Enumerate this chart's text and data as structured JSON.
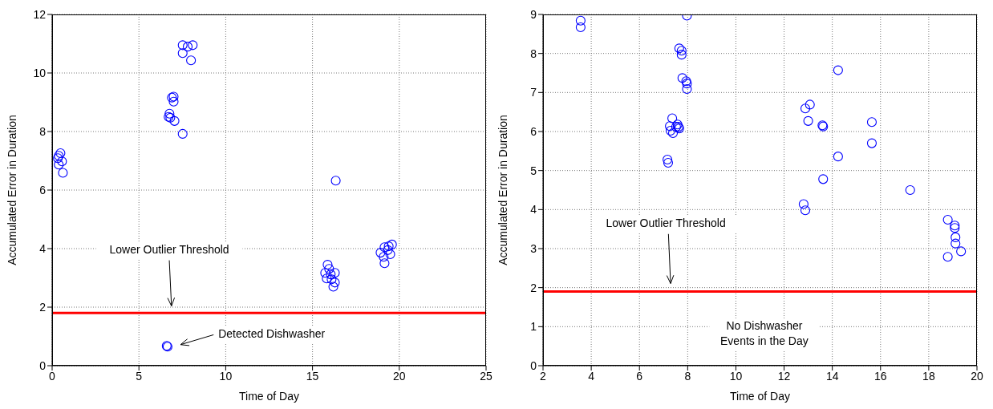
{
  "chart_data": [
    {
      "type": "scatter",
      "xlabel": "Time of Day",
      "ylabel": "Accumulated Error in Duration",
      "marker": "circle",
      "grid": true,
      "xlim": [
        0,
        25
      ],
      "xticks": [
        0,
        5,
        10,
        15,
        20,
        25
      ],
      "ylim": [
        0,
        12
      ],
      "yticks": [
        0,
        2,
        4,
        6,
        8,
        10,
        12
      ],
      "series": [
        {
          "color": "#0000ff",
          "x": [
            0.38,
            0.48,
            0.33,
            0.57,
            0.38,
            0.62,
            7.0,
            6.9,
            7.0,
            6.76,
            6.71,
            6.81,
            7.05,
            7.52,
            7.52,
            8.1,
            7.81,
            7.52,
            8.0,
            16.34,
            15.87,
            15.96,
            15.73,
            16.05,
            16.29,
            15.82,
            16.1,
            16.29,
            16.2,
            18.92,
            19.15,
            19.39,
            19.58,
            19.34,
            19.48,
            19.1,
            19.15,
            6.6,
            6.65
          ],
          "values": [
            7.17,
            7.26,
            7.09,
            6.98,
            6.87,
            6.59,
            9.19,
            9.16,
            9.02,
            8.61,
            8.5,
            8.47,
            8.36,
            7.92,
            10.95,
            10.95,
            10.9,
            10.68,
            10.43,
            6.32,
            3.45,
            3.31,
            3.17,
            3.12,
            3.17,
            2.98,
            2.95,
            2.84,
            2.7,
            3.86,
            4.05,
            4.08,
            4.14,
            3.95,
            3.81,
            3.72,
            3.5,
            0.68,
            0.65
          ]
        }
      ],
      "ref_lines": [
        {
          "axis": "y",
          "value": 1.8,
          "color": "#ff0000"
        }
      ],
      "annotations": [
        "Lower Outlier Threshold",
        "Detected Dishwasher"
      ]
    },
    {
      "type": "scatter",
      "xlabel": "Time of Day",
      "ylabel": "Accumulated Error in Duration",
      "marker": "circle",
      "grid": true,
      "xlim": [
        2,
        20
      ],
      "xticks": [
        2,
        4,
        6,
        8,
        10,
        12,
        14,
        16,
        18,
        20
      ],
      "ylim": [
        0,
        9
      ],
      "yticks": [
        0,
        1,
        2,
        3,
        4,
        5,
        6,
        7,
        8,
        9
      ],
      "series": [
        {
          "color": "#0000ff",
          "x": [
            3.56,
            3.56,
            7.97,
            7.65,
            7.75,
            7.75,
            7.78,
            7.94,
            7.97,
            7.97,
            7.36,
            7.26,
            7.29,
            7.39,
            7.58,
            7.62,
            7.52,
            7.65,
            7.16,
            7.19,
            14.24,
            13.07,
            12.88,
            13.0,
            13.59,
            13.62,
            15.64,
            15.64,
            14.24,
            13.62,
            12.81,
            12.88,
            17.23,
            18.79,
            19.08,
            19.08,
            19.11,
            19.11,
            19.34,
            18.79
          ],
          "values": [
            8.84,
            8.67,
            8.97,
            8.13,
            8.07,
            7.97,
            7.37,
            7.29,
            7.23,
            7.09,
            6.34,
            6.14,
            6.02,
            5.96,
            6.18,
            6.12,
            6.12,
            6.08,
            5.28,
            5.2,
            7.57,
            6.69,
            6.59,
            6.27,
            6.16,
            6.13,
            6.24,
            5.7,
            5.36,
            4.78,
            4.14,
            3.98,
            4.5,
            3.74,
            3.59,
            3.53,
            3.29,
            3.13,
            2.93,
            2.79
          ]
        }
      ],
      "ref_lines": [
        {
          "axis": "y",
          "value": 1.9,
          "color": "#ff0000"
        }
      ],
      "annotations": [
        "Lower Outlier Threshold",
        "No Dishwasher\nEvents in the Day"
      ]
    }
  ]
}
